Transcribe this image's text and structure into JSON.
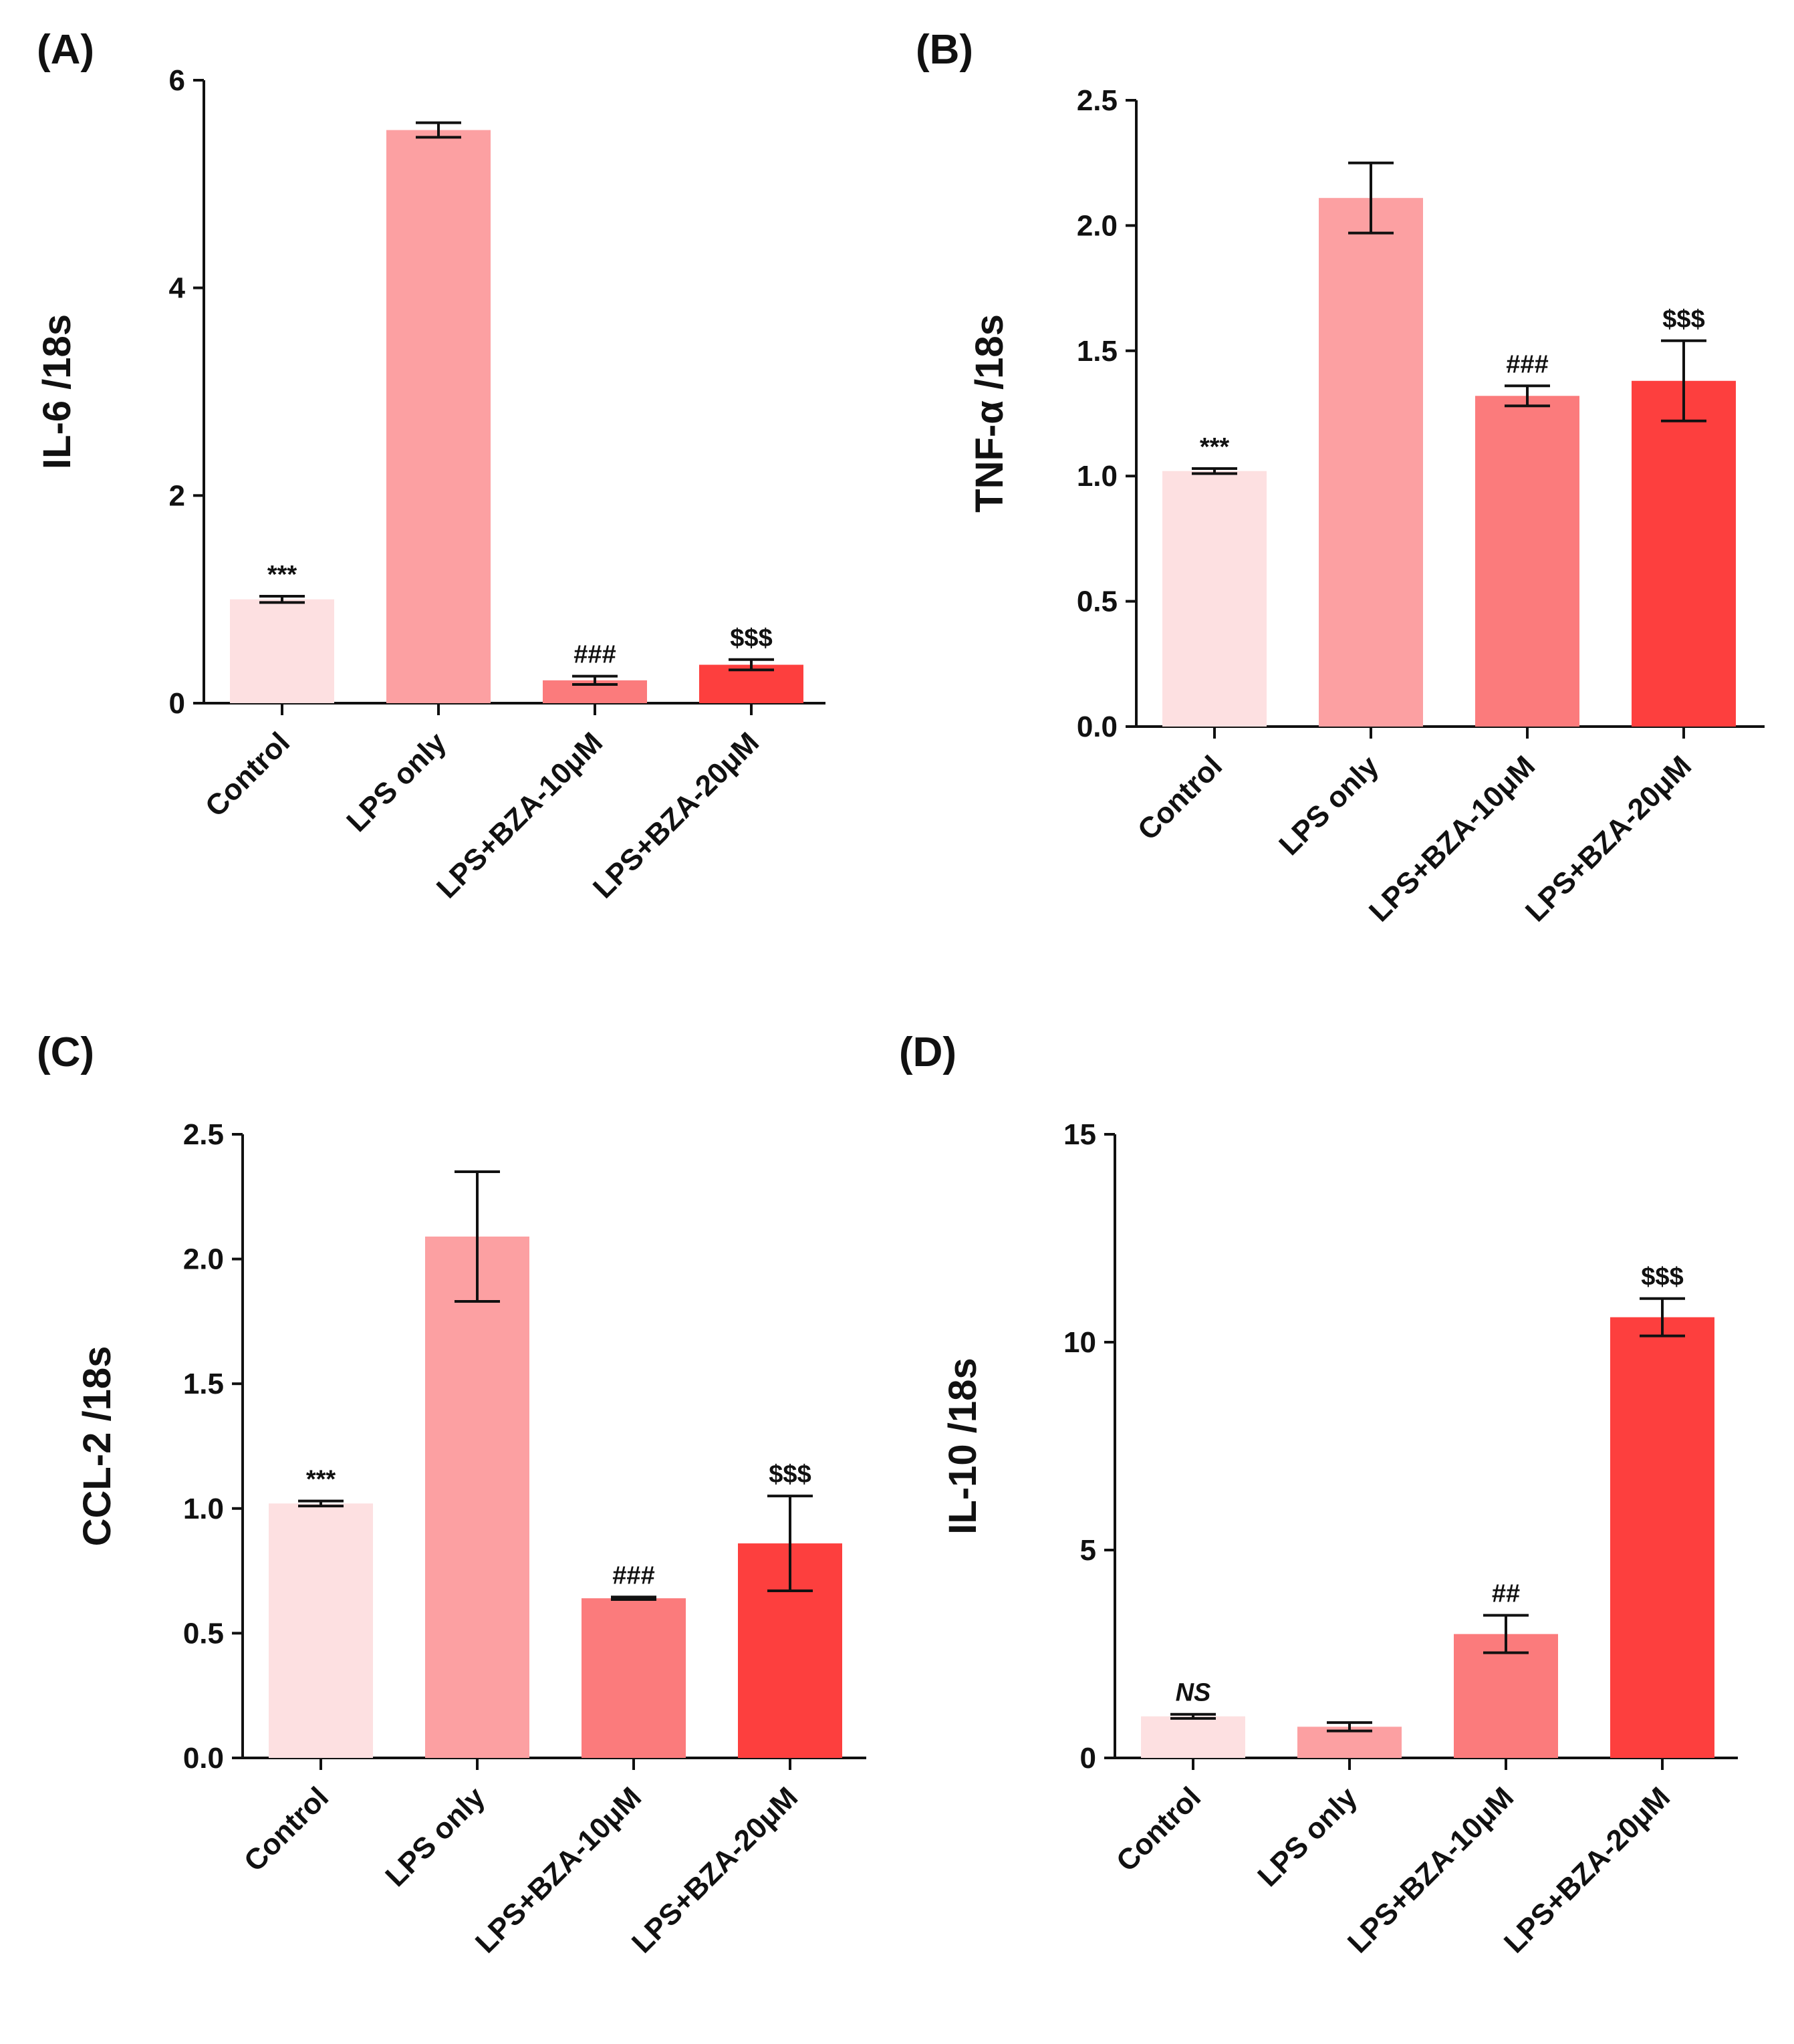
{
  "figure": {
    "bar_colors": [
      "#fde0e1",
      "#fca0a2",
      "#fb7b7c",
      "#fd3f3e"
    ]
  },
  "chart_data": [
    {
      "type": "bar",
      "panel": "(A)",
      "ylabel": "IL-6 /18s",
      "categories": [
        "Control",
        "LPS only",
        "LPS+BZA-10μM",
        "LPS+BZA-20μM"
      ],
      "values": [
        1.0,
        5.52,
        0.22,
        0.37
      ],
      "errors": [
        0.03,
        0.07,
        0.04,
        0.05
      ],
      "ylim": [
        0,
        6
      ],
      "yticks": [
        0,
        2,
        4,
        6
      ],
      "ytick_labels": [
        "0",
        "2",
        "4",
        "6"
      ],
      "annotations": [
        "***",
        "",
        "###",
        "$$$"
      ]
    },
    {
      "type": "bar",
      "panel": "(B)",
      "ylabel": "TNF-α /18s",
      "categories": [
        "Control",
        "LPS only",
        "LPS+BZA-10μM",
        "LPS+BZA-20μM"
      ],
      "values": [
        1.02,
        2.11,
        1.32,
        1.38
      ],
      "errors": [
        0.01,
        0.14,
        0.04,
        0.16
      ],
      "ylim": [
        0,
        2.5
      ],
      "yticks": [
        0,
        0.5,
        1.0,
        1.5,
        2.0,
        2.5
      ],
      "ytick_labels": [
        "0.0",
        "0.5",
        "1.0",
        "1.5",
        "2.0",
        "2.5"
      ],
      "annotations": [
        "***",
        "",
        "###",
        "$$$"
      ]
    },
    {
      "type": "bar",
      "panel": "(C)",
      "ylabel": "CCL-2 /18s",
      "categories": [
        "Control",
        "LPS only",
        "LPS+BZA-10μM",
        "LPS+BZA-20μM"
      ],
      "values": [
        1.02,
        2.09,
        0.64,
        0.86
      ],
      "errors": [
        0.01,
        0.26,
        0.005,
        0.19
      ],
      "ylim": [
        0,
        2.5
      ],
      "yticks": [
        0,
        0.5,
        1.0,
        1.5,
        2.0,
        2.5
      ],
      "ytick_labels": [
        "0.0",
        "0.5",
        "1.0",
        "1.5",
        "2.0",
        "2.5"
      ],
      "annotations": [
        "***",
        "",
        "###",
        "$$$"
      ]
    },
    {
      "type": "bar",
      "panel": "(D)",
      "ylabel": "IL-10 /18s",
      "categories": [
        "Control",
        "LPS only",
        "LPS+BZA-10μM",
        "LPS+BZA-20μM"
      ],
      "values": [
        1.0,
        0.75,
        2.98,
        10.6
      ],
      "errors": [
        0.05,
        0.1,
        0.45,
        0.45
      ],
      "ylim": [
        0,
        15
      ],
      "yticks": [
        0,
        5,
        10,
        15
      ],
      "ytick_labels": [
        "0",
        "5",
        "10",
        "15"
      ],
      "annotations": [
        "NS",
        "",
        "##",
        "$$$"
      ]
    }
  ]
}
